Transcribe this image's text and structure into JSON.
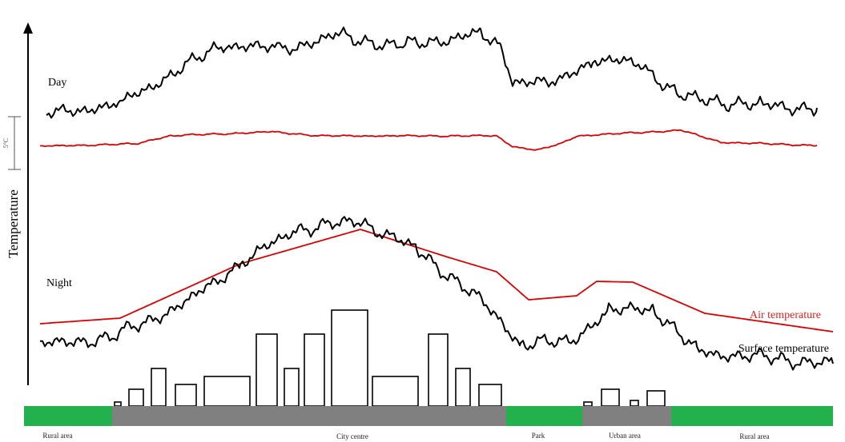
{
  "axis_label": "Temperature",
  "scale_label": "5°C",
  "periods": {
    "day": "Day",
    "night": "Night"
  },
  "legend": {
    "air": "Air temperature",
    "surface": "Surface temperature"
  },
  "zones": [
    "Rural area",
    "City centre",
    "Park",
    "Urban area",
    "Rural area"
  ]
}
